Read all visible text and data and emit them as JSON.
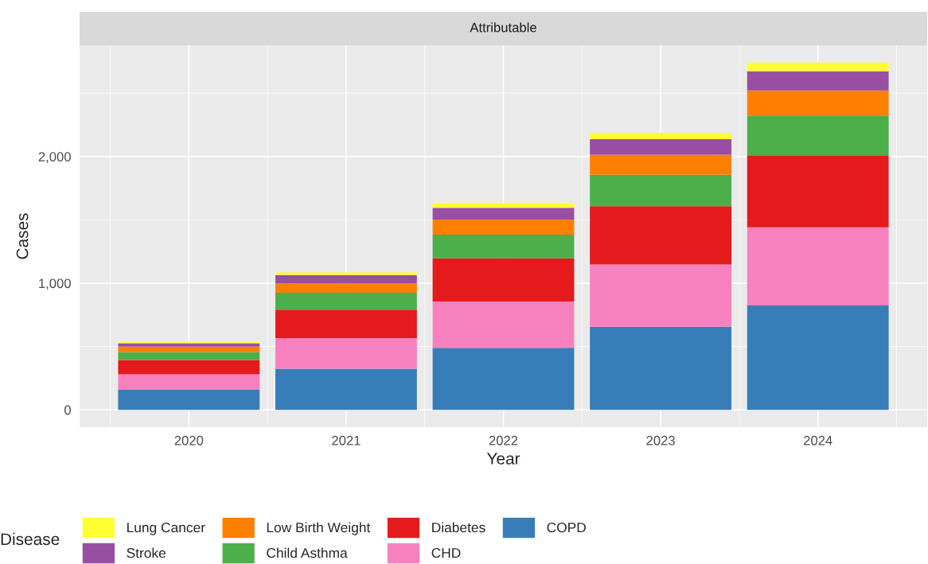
{
  "chart_data": {
    "type": "bar",
    "title": "Attributable",
    "xlabel": "Year",
    "ylabel": "Cases",
    "legend_title": "Disease",
    "x": [
      2020,
      2021,
      2022,
      2023,
      2024
    ],
    "xlim": [
      2019.305,
      2024.695
    ],
    "xticks": [
      2020,
      2021,
      2022,
      2023,
      2024
    ],
    "ylim": [
      -137,
      2878
    ],
    "yticks": [
      0,
      {
        "value": 1000,
        "label": "1,000"
      },
      {
        "value": 2000,
        "label": "2,000"
      }
    ],
    "stacked": true,
    "grid": true,
    "legend": "bottom",
    "series": [
      {
        "name": "COPD",
        "color": "#377eb8",
        "values": [
          158,
          324,
          490,
          656,
          824
        ]
      },
      {
        "name": "CHD",
        "color": "#f781bf",
        "values": [
          123,
          243,
          365,
          492,
          617
        ]
      },
      {
        "name": "Diabetes",
        "color": "#e41a1c",
        "values": [
          112,
          224,
          341,
          459,
          569
        ]
      },
      {
        "name": "Child Asthma",
        "color": "#4daf4a",
        "values": [
          62,
          133,
          187,
          249,
          313
        ]
      },
      {
        "name": "Low Birth Weight",
        "color": "#ff7f00",
        "values": [
          44,
          73,
          120,
          158,
          198
        ]
      },
      {
        "name": "Stroke",
        "color": "#984ea3",
        "values": [
          27,
          67,
          92,
          123,
          153
        ]
      },
      {
        "name": "Lung Cancer",
        "color": "#ffff33",
        "values": [
          12,
          21,
          37,
          50,
          67
        ]
      }
    ]
  }
}
